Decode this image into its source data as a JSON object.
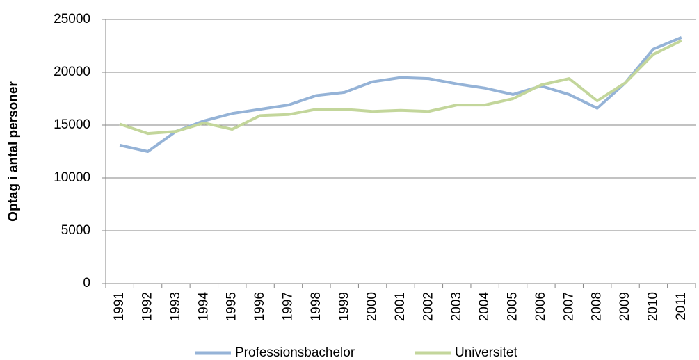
{
  "chart_data": {
    "type": "line",
    "y_label": "Optag i antal personer",
    "categories": [
      "1991",
      "1992",
      "1993",
      "1994",
      "1995",
      "1996",
      "1997",
      "1998",
      "1999",
      "2000",
      "2001",
      "2002",
      "2003",
      "2004",
      "2005",
      "2006",
      "2007",
      "2008",
      "2009",
      "2010",
      "2011"
    ],
    "series": [
      {
        "name": "Professionsbachelor",
        "color": "#95b3d7",
        "values": [
          13100,
          12500,
          14400,
          15400,
          16100,
          16500,
          16900,
          17800,
          18100,
          19100,
          19500,
          19400,
          18900,
          18500,
          17900,
          18700,
          17900,
          16600,
          19000,
          22200,
          23300
        ]
      },
      {
        "name": "Universitet",
        "color": "#c3d69b",
        "values": [
          15100,
          14200,
          14400,
          15200,
          14600,
          15900,
          16000,
          16500,
          16500,
          16300,
          16400,
          16300,
          16900,
          16900,
          17500,
          18800,
          19400,
          17300,
          19000,
          21700,
          23000
        ]
      }
    ],
    "ylim": [
      0,
      25000
    ],
    "yticks": [
      0,
      5000,
      10000,
      15000,
      20000,
      25000
    ],
    "grid": true,
    "legend": "bottom"
  }
}
